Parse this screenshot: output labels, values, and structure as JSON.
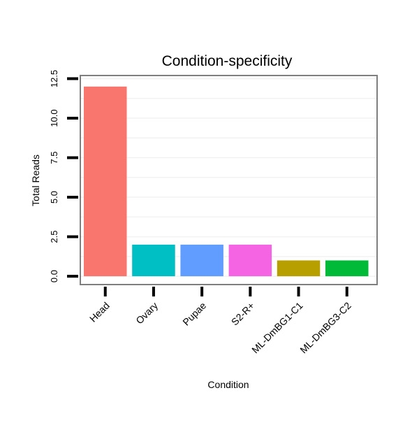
{
  "chart_data": {
    "type": "bar",
    "title": "Condition-specificity",
    "xlabel": "Condition",
    "ylabel": "Total Reads",
    "categories": [
      "Head",
      "Ovary",
      "Pupae",
      "S2-R+",
      "ML-DmBG1-C1",
      "ML-DmBG3-C2"
    ],
    "values": [
      12,
      2,
      2,
      2,
      1,
      1
    ],
    "colors": [
      "#F8766D",
      "#00BFC4",
      "#619CFF",
      "#F564E3",
      "#B79F00",
      "#00BA38"
    ],
    "yticks": [
      0.0,
      2.5,
      5.0,
      7.5,
      10.0,
      12.5
    ],
    "ytick_labels": [
      "0.0",
      "2.5",
      "5.0",
      "7.5",
      "10.0",
      "12.5"
    ],
    "ylim": [
      -0.25,
      12.5
    ],
    "grid": true,
    "legend": "none"
  }
}
